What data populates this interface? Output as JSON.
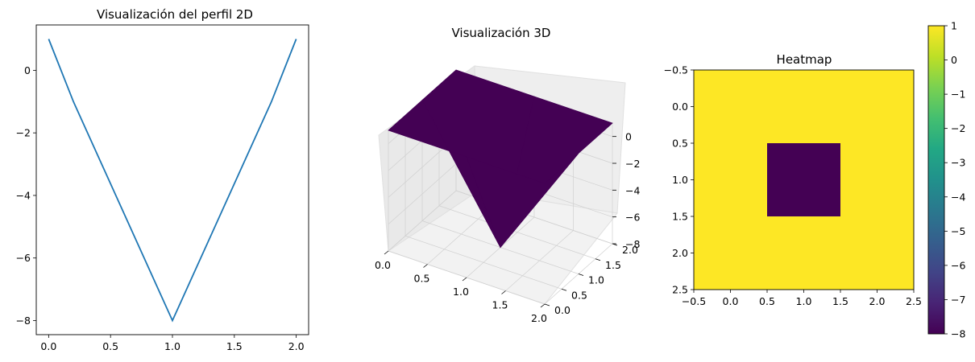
{
  "chart_data": [
    {
      "type": "line",
      "title": "Visualización del perfil 2D",
      "xlabel": "",
      "ylabel": "",
      "xlim": [
        -0.1,
        2.1
      ],
      "ylim": [
        -8.45,
        1.45
      ],
      "grid": false,
      "x": [
        0.0,
        0.2,
        1.0,
        1.8,
        2.0
      ],
      "series": [
        {
          "values": [
            1,
            -1,
            -8,
            -1,
            1
          ],
          "color": "#1f77b4"
        }
      ],
      "x_ticks": [
        0.0,
        0.5,
        1.0,
        1.5,
        2.0
      ],
      "x_tick_labels": [
        "0.0",
        "0.5",
        "1.0",
        "1.5",
        "2.0"
      ],
      "y_ticks": [
        0,
        -2,
        -4,
        -6,
        -8
      ],
      "y_tick_labels": [
        "0",
        "−2",
        "−4",
        "−6",
        "−8"
      ]
    },
    {
      "type": "surface",
      "title": "Visualización 3D",
      "colormap": "viridis",
      "x": [
        0,
        1,
        2
      ],
      "y": [
        0,
        1,
        2
      ],
      "z": [
        [
          1,
          1,
          1
        ],
        [
          1,
          -8,
          1
        ],
        [
          1,
          1,
          1
        ]
      ],
      "surface_color": "#440154",
      "x_ticks": [
        0.0,
        0.5,
        1.0,
        1.5,
        2.0
      ],
      "x_tick_labels": [
        "0.0",
        "0.5",
        "1.0",
        "1.5",
        "2.0"
      ],
      "y_ticks": [
        0.0,
        0.5,
        1.0,
        1.5,
        2.0
      ],
      "y_tick_labels": [
        "0.0",
        "0.5",
        "1.0",
        "1.5",
        "2.0"
      ],
      "z_ticks": [
        0,
        -2,
        -4,
        -6,
        -8
      ],
      "z_tick_labels": [
        "0",
        "−2",
        "−4",
        "−6",
        "−8"
      ],
      "zlim": [
        -8,
        1
      ],
      "grid": true
    },
    {
      "type": "heatmap",
      "title": "Heatmap",
      "colormap": "viridis",
      "values": [
        [
          1,
          1,
          1
        ],
        [
          1,
          -8,
          1
        ],
        [
          1,
          1,
          1
        ]
      ],
      "xlim": [
        -0.5,
        2.5
      ],
      "ylim": [
        2.5,
        -0.5
      ],
      "x_ticks": [
        -0.5,
        0.0,
        0.5,
        1.0,
        1.5,
        2.0,
        2.5
      ],
      "x_tick_labels": [
        "−0.5",
        "0.0",
        "0.5",
        "1.0",
        "1.5",
        "2.0",
        "2.5"
      ],
      "y_ticks": [
        -0.5,
        0.0,
        0.5,
        1.0,
        1.5,
        2.0,
        2.5
      ],
      "y_tick_labels": [
        "−0.5",
        "0.0",
        "0.5",
        "1.0",
        "1.5",
        "2.0",
        "2.5"
      ],
      "colorbar": {
        "range": [
          -8,
          1
        ],
        "ticks": [
          1,
          0,
          -1,
          -2,
          -3,
          -4,
          -5,
          -6,
          -7,
          -8
        ],
        "tick_labels": [
          "1",
          "0",
          "−1",
          "−2",
          "−3",
          "−4",
          "−5",
          "−6",
          "−7",
          "−8"
        ]
      },
      "high_color": "#fde725",
      "low_color": "#440154"
    }
  ]
}
